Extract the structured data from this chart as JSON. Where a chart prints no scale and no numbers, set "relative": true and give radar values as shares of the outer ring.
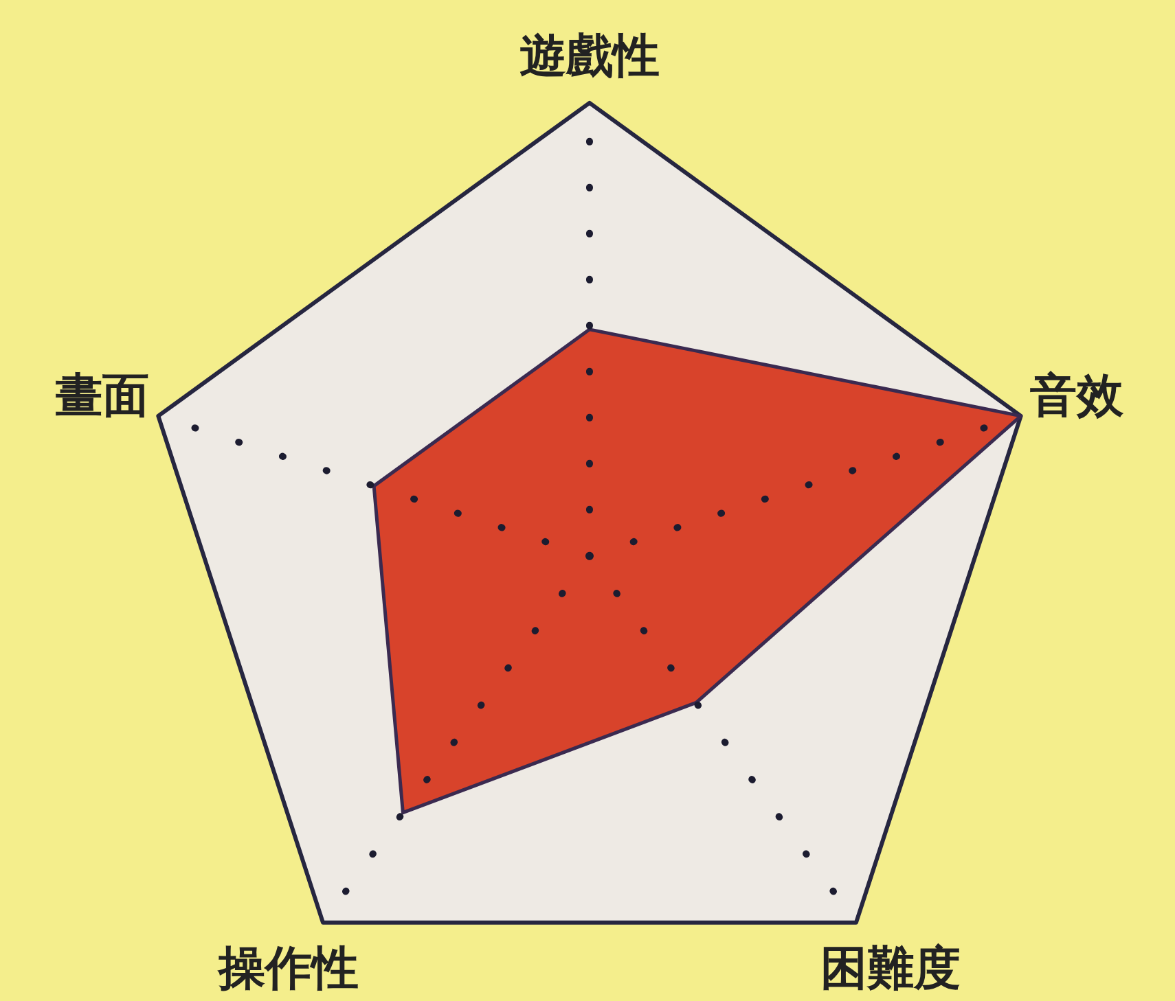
{
  "chart_data": {
    "type": "radar",
    "categories": [
      "遊戲性",
      "音效",
      "困難度",
      "操作性",
      "畫面"
    ],
    "series": [
      {
        "color": "#d8432b",
        "values": [
          0.5,
          1,
          0.4,
          0.7,
          0.5
        ]
      }
    ],
    "relative": true,
    "grid": true
  }
}
